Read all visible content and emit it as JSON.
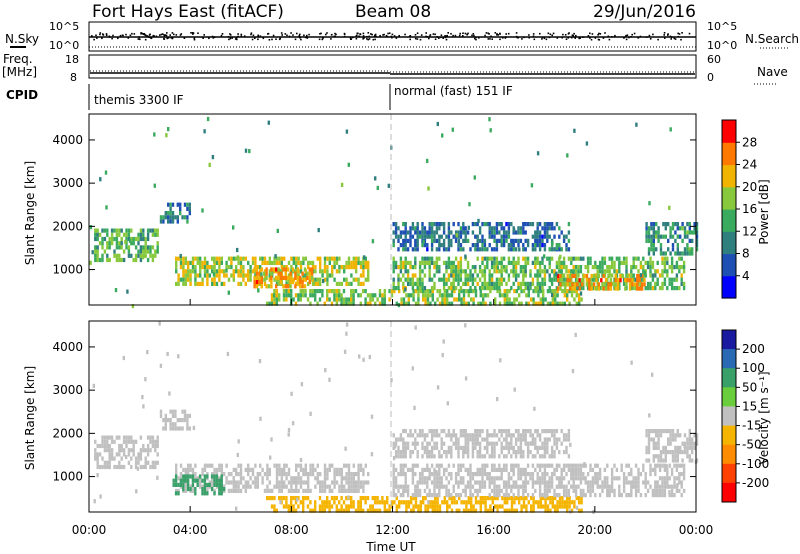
{
  "header": {
    "station": "Fort Hays East (fitACF)",
    "beam": "Beam 08",
    "date": "29/Jun/2016"
  },
  "top_panels": {
    "nsky_label": "N.Sky",
    "nsearch_label": "N.Search",
    "nsky_ticks": [
      "10^5",
      "10^0"
    ],
    "nsearch_ticks": [
      "10^5",
      "10^0"
    ],
    "freq_label": "Freq.",
    "freq_unit": "[MHz]",
    "freq_ticks": [
      "18",
      "8"
    ],
    "nave_label": "Nave",
    "nave_ticks": [
      "60",
      "0"
    ],
    "cpid_label": "CPID",
    "cpid_segments": [
      "themis 3300 IF",
      "normal (fast) 151 IF"
    ]
  },
  "chart_data": [
    {
      "type": "heatmap",
      "name": "power",
      "ylabel": "Slant Range [km]",
      "xlabel": "Time UT",
      "x_ticks": [
        "00:00",
        "04:00",
        "08:00",
        "12:00",
        "16:00",
        "20:00",
        "00:00"
      ],
      "xlim_hours": [
        0,
        24
      ],
      "y_ticks": [
        1000,
        2000,
        3000,
        4000
      ],
      "ylim": [
        180,
        4600
      ],
      "colorbar": {
        "label": "Power [dB]",
        "ticks": [
          "4",
          "8",
          "12",
          "16",
          "20",
          "24",
          "28"
        ],
        "range": [
          0,
          30
        ],
        "colors": [
          "#0000ff",
          "#1e50b4",
          "#2f7f7f",
          "#3aaa5f",
          "#88c83c",
          "#f0b400",
          "#ff7800",
          "#ff0000"
        ]
      },
      "regions": [
        {
          "t0": 0.2,
          "t1": 2.7,
          "r0": 1200,
          "r1": 1950,
          "level": 14
        },
        {
          "t0": 2.8,
          "t1": 4.0,
          "r0": 2100,
          "r1": 2550,
          "level": 10
        },
        {
          "t0": 3.4,
          "t1": 11.0,
          "r0": 650,
          "r1": 1300,
          "level": 18
        },
        {
          "t0": 6.5,
          "t1": 8.8,
          "r0": 620,
          "r1": 1050,
          "level": 22
        },
        {
          "t0": 7.0,
          "t1": 19.5,
          "r0": 200,
          "r1": 550,
          "level": 16
        },
        {
          "t0": 12.0,
          "t1": 23.5,
          "r0": 600,
          "r1": 1300,
          "level": 15
        },
        {
          "t0": 18.5,
          "t1": 22.0,
          "r0": 550,
          "r1": 900,
          "level": 22
        },
        {
          "t0": 12.0,
          "t1": 19.0,
          "r0": 1500,
          "r1": 2100,
          "level": 8
        },
        {
          "t0": 22.0,
          "t1": 24.0,
          "r0": 1400,
          "r1": 2100,
          "level": 11
        }
      ]
    },
    {
      "type": "heatmap",
      "name": "velocity",
      "ylabel": "Slant Range [km]",
      "xlabel": "Time UT",
      "x_ticks": [
        "00:00",
        "04:00",
        "08:00",
        "12:00",
        "16:00",
        "20:00",
        "00:00"
      ],
      "xlim_hours": [
        0,
        24
      ],
      "y_ticks": [
        1000,
        2000,
        3000,
        4000
      ],
      "ylim": [
        180,
        4600
      ],
      "colorbar": {
        "label": "Velocity [m s⁻¹]",
        "ticks": [
          "200",
          "100",
          "50",
          "15",
          "-15",
          "-50",
          "-100",
          "-200"
        ],
        "colors": [
          "#1a1aa0",
          "#2a6ab4",
          "#3aa06a",
          "#6acd3c",
          "#c0c0c0",
          "#f5b400",
          "#ff8c00",
          "#ff4000",
          "#ff0000"
        ]
      },
      "regions": [
        {
          "t0": 0.2,
          "t1": 2.7,
          "r0": 1200,
          "r1": 1950,
          "level": 0
        },
        {
          "t0": 2.8,
          "t1": 4.0,
          "r0": 2100,
          "r1": 2550,
          "level": 0
        },
        {
          "t0": 3.4,
          "t1": 11.0,
          "r0": 650,
          "r1": 1300,
          "level": 0
        },
        {
          "t0": 3.3,
          "t1": 5.3,
          "r0": 600,
          "r1": 1050,
          "level": 60
        },
        {
          "t0": 7.0,
          "t1": 19.5,
          "r0": 200,
          "r1": 550,
          "level": -40
        },
        {
          "t0": 12.0,
          "t1": 23.5,
          "r0": 600,
          "r1": 1300,
          "level": 0
        },
        {
          "t0": 12.0,
          "t1": 19.0,
          "r0": 1500,
          "r1": 2100,
          "level": 0
        },
        {
          "t0": 22.0,
          "t1": 24.0,
          "r0": 1400,
          "r1": 2100,
          "level": 0
        }
      ]
    }
  ]
}
